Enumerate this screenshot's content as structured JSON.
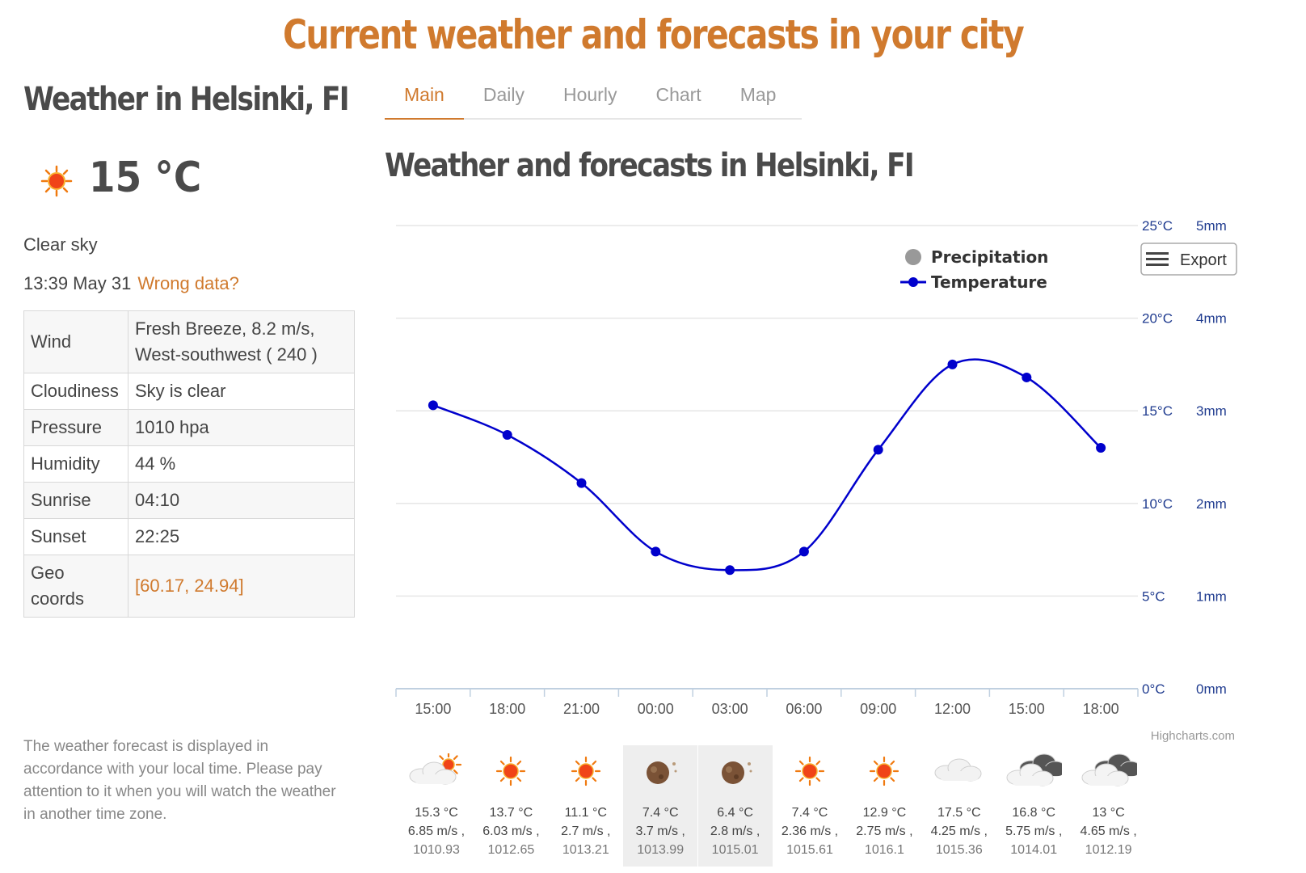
{
  "banner": "Current weather and forecasts in your city",
  "current": {
    "title": "Weather in Helsinki, FI",
    "temp": "15 °C",
    "icon": "sun-icon",
    "condition": "Clear sky",
    "time": "13:39 May 31",
    "wrong_data_link": "Wrong data?",
    "rows": [
      {
        "key": "Wind",
        "value": "Fresh Breeze, 8.2 m/s, West-southwest ( 240 )"
      },
      {
        "key": "Cloudiness",
        "value": "Sky is clear"
      },
      {
        "key": "Pressure",
        "value": "1010 hpa"
      },
      {
        "key": "Humidity",
        "value": "44 %"
      },
      {
        "key": "Sunrise",
        "value": "04:10"
      },
      {
        "key": "Sunset",
        "value": "22:25"
      },
      {
        "key": "Geo coords",
        "value": "[60.17, 24.94]"
      }
    ],
    "note": "The weather forecast is displayed in accordance with your local time. Please pay attention to it when you will watch the weather in another time zone."
  },
  "tabs": [
    "Main",
    "Daily",
    "Hourly",
    "Chart",
    "Map"
  ],
  "active_tab": "Main",
  "chart_title": "Weather and forecasts in Helsinki, FI",
  "export_label": "Export",
  "credit": "Highcharts.com",
  "colors": {
    "accent": "#d07a2e",
    "temperature": "#0000cc",
    "precipitation": "#999999",
    "axis_text": "#1f3b8f"
  },
  "chart_data": {
    "type": "line",
    "x": [
      "15:00",
      "18:00",
      "21:00",
      "00:00",
      "03:00",
      "06:00",
      "09:00",
      "12:00",
      "15:00",
      "18:00"
    ],
    "series": [
      {
        "name": "Precipitation",
        "type": "bar",
        "values": [
          0,
          0,
          0,
          0,
          0,
          0,
          0,
          0,
          0,
          0
        ]
      },
      {
        "name": "Temperature",
        "type": "line",
        "values": [
          15.3,
          13.7,
          11.1,
          7.4,
          6.4,
          7.4,
          12.9,
          17.5,
          16.8,
          13
        ]
      }
    ],
    "y_temp": {
      "ticks": [
        "0°C",
        "5°C",
        "10°C",
        "15°C",
        "20°C",
        "25°C"
      ],
      "range": [
        0,
        25
      ]
    },
    "y_precip": {
      "ticks": [
        "0mm",
        "1mm",
        "2mm",
        "3mm",
        "4mm",
        "5mm"
      ],
      "range": [
        0,
        5
      ]
    },
    "legend": "top-right",
    "grid": true
  },
  "forecast": [
    {
      "icon": "partly-cloudy-day-icon",
      "temp": "15.3 °C",
      "wind": "6.85 m/s ,",
      "pressure": "1010.93",
      "night": false
    },
    {
      "icon": "sun-icon",
      "temp": "13.7 °C",
      "wind": "6.03 m/s ,",
      "pressure": "1012.65",
      "night": false
    },
    {
      "icon": "sun-icon",
      "temp": "11.1 °C",
      "wind": "2.7 m/s ,",
      "pressure": "1013.21",
      "night": false
    },
    {
      "icon": "moon-icon",
      "temp": "7.4 °C",
      "wind": "3.7 m/s ,",
      "pressure": "1013.99",
      "night": true
    },
    {
      "icon": "moon-icon",
      "temp": "6.4 °C",
      "wind": "2.8 m/s ,",
      "pressure": "1015.01",
      "night": true
    },
    {
      "icon": "sun-icon",
      "temp": "7.4 °C",
      "wind": "2.36 m/s ,",
      "pressure": "1015.61",
      "night": false
    },
    {
      "icon": "sun-icon",
      "temp": "12.9 °C",
      "wind": "2.75 m/s ,",
      "pressure": "1016.1",
      "night": false
    },
    {
      "icon": "cloud-icon",
      "temp": "17.5 °C",
      "wind": "4.25 m/s ,",
      "pressure": "1015.36",
      "night": false
    },
    {
      "icon": "broken-clouds-icon",
      "temp": "16.8 °C",
      "wind": "5.75 m/s ,",
      "pressure": "1014.01",
      "night": false
    },
    {
      "icon": "broken-clouds-icon",
      "temp": "13 °C",
      "wind": "4.65 m/s ,",
      "pressure": "1012.19",
      "night": false
    }
  ]
}
